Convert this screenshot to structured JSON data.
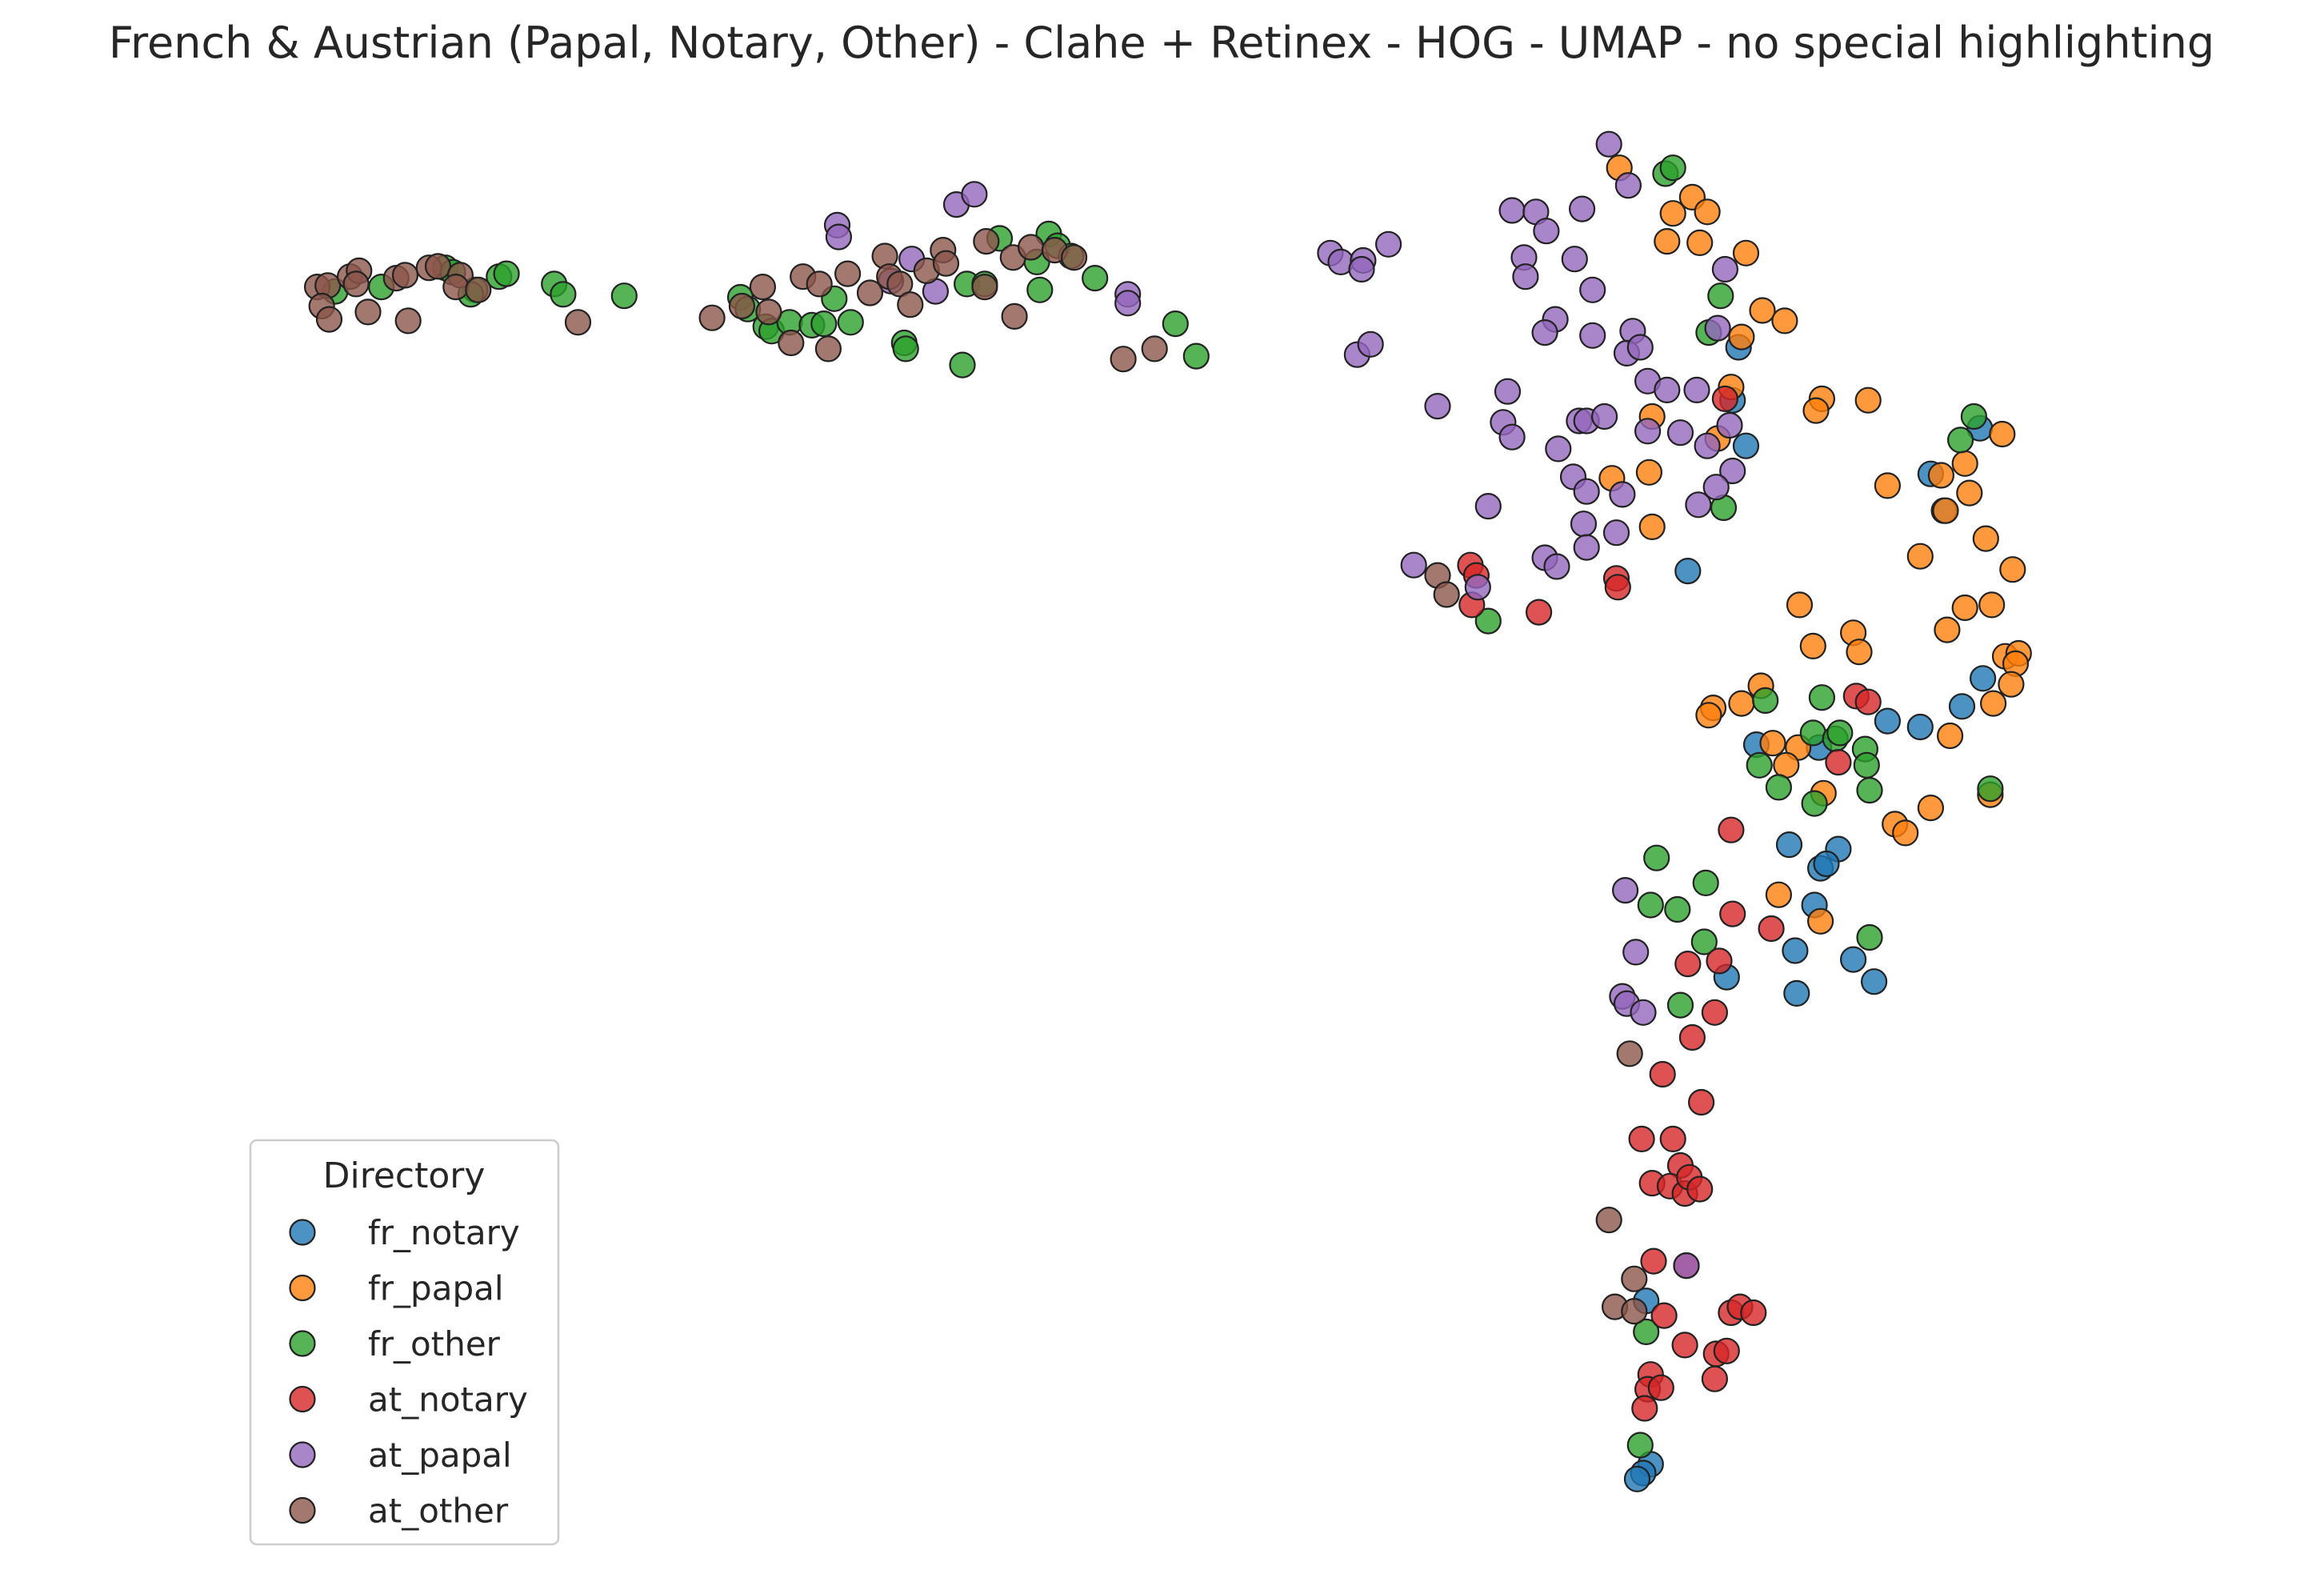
{
  "chart_data": {
    "type": "scatter",
    "title": "French & Austrian (Papal, Notary, Other) - Clahe + Retinex - HOG - UMAP - no special highlighting",
    "xlabel": "",
    "ylabel": "",
    "grid": false,
    "axes_visible": false,
    "xlim": [
      0,
      1560
    ],
    "ylim": [
      1075,
      0
    ],
    "legend": {
      "title": "Directory",
      "placement": "lower-left"
    },
    "series": [
      {
        "name": "fr_notary",
        "color": "#1f77b4",
        "points": [
          [
            1167,
            236
          ],
          [
            1163,
            272
          ],
          [
            1172,
            303
          ],
          [
            1133,
            388
          ],
          [
            1296,
            322
          ],
          [
            1305,
            347
          ],
          [
            1329,
            291
          ],
          [
            1331,
            461
          ],
          [
            1317,
            480
          ],
          [
            1289,
            494
          ],
          [
            1267,
            490
          ],
          [
            1221,
            508
          ],
          [
            1179,
            506
          ],
          [
            1201,
            574
          ],
          [
            1222,
            590
          ],
          [
            1234,
            577
          ],
          [
            1226,
            587
          ],
          [
            1218,
            615
          ],
          [
            1205,
            646
          ],
          [
            1244,
            652
          ],
          [
            1258,
            667
          ],
          [
            1206,
            675
          ],
          [
            1159,
            664
          ],
          [
            1105,
            884
          ],
          [
            1108,
            995
          ],
          [
            1103,
            1001
          ],
          [
            1099,
            1005
          ]
        ]
      },
      {
        "name": "fr_papal",
        "color": "#ff7f0e",
        "points": [
          [
            1087,
            114
          ],
          [
            1123,
            145
          ],
          [
            1136,
            134
          ],
          [
            1146,
            144
          ],
          [
            1119,
            164
          ],
          [
            1141,
            165
          ],
          [
            1172,
            172
          ],
          [
            1183,
            211
          ],
          [
            1198,
            218
          ],
          [
            1169,
            229
          ],
          [
            1162,
            263
          ],
          [
            1223,
            271
          ],
          [
            1219,
            279
          ],
          [
            1254,
            272
          ],
          [
            1153,
            298
          ],
          [
            1109,
            283
          ],
          [
            1107,
            321
          ],
          [
            1082,
            325
          ],
          [
            1109,
            358
          ],
          [
            1267,
            330
          ],
          [
            1303,
            323
          ],
          [
            1319,
            315
          ],
          [
            1322,
            335
          ],
          [
            1306,
            347
          ],
          [
            1333,
            366
          ],
          [
            1344,
            295
          ],
          [
            1289,
            378
          ],
          [
            1351,
            387
          ],
          [
            1208,
            411
          ],
          [
            1244,
            430
          ],
          [
            1217,
            439
          ],
          [
            1248,
            443
          ],
          [
            1307,
            428
          ],
          [
            1319,
            413
          ],
          [
            1337,
            411
          ],
          [
            1346,
            446
          ],
          [
            1355,
            444
          ],
          [
            1353,
            451
          ],
          [
            1350,
            465
          ],
          [
            1182,
            466
          ],
          [
            1150,
            481
          ],
          [
            1147,
            486
          ],
          [
            1169,
            478
          ],
          [
            1190,
            505
          ],
          [
            1207,
            508
          ],
          [
            1199,
            520
          ],
          [
            1309,
            500
          ],
          [
            1338,
            478
          ],
          [
            1224,
            539
          ],
          [
            1272,
            560
          ],
          [
            1279,
            566
          ],
          [
            1296,
            549
          ],
          [
            1336,
            540
          ],
          [
            1194,
            608
          ],
          [
            1222,
            626
          ]
        ]
      },
      {
        "name": "fr_other",
        "color": "#2ca02c",
        "points": [
          [
            225,
            198
          ],
          [
            256,
            195
          ],
          [
            299,
            182
          ],
          [
            304,
            185
          ],
          [
            319,
            197
          ],
          [
            316,
            200
          ],
          [
            335,
            188
          ],
          [
            340,
            186
          ],
          [
            372,
            193
          ],
          [
            378,
            200
          ],
          [
            419,
            201
          ],
          [
            497,
            202
          ],
          [
            502,
            210
          ],
          [
            514,
            222
          ],
          [
            518,
            225
          ],
          [
            530,
            219
          ],
          [
            545,
            221
          ],
          [
            553,
            220
          ],
          [
            571,
            219
          ],
          [
            560,
            203
          ],
          [
            607,
            233
          ],
          [
            608,
            237
          ],
          [
            646,
            248
          ],
          [
            649,
            193
          ],
          [
            671,
            162
          ],
          [
            661,
            193
          ],
          [
            698,
            197
          ],
          [
            696,
            178
          ],
          [
            704,
            159
          ],
          [
            710,
            167
          ],
          [
            719,
            174
          ],
          [
            735,
            189
          ],
          [
            789,
            220
          ],
          [
            803,
            242
          ],
          [
            1118,
            118
          ],
          [
            1123,
            114
          ],
          [
            1155,
            201
          ],
          [
            1147,
            226
          ],
          [
            1157,
            345
          ],
          [
            999,
            422
          ],
          [
            1325,
            283
          ],
          [
            1316,
            299
          ],
          [
            1336,
            536
          ],
          [
            1223,
            474
          ],
          [
            1185,
            476
          ],
          [
            1181,
            520
          ],
          [
            1194,
            535
          ],
          [
            1217,
            498
          ],
          [
            1232,
            502
          ],
          [
            1235,
            498
          ],
          [
            1252,
            509
          ],
          [
            1253,
            520
          ],
          [
            1255,
            537
          ],
          [
            1218,
            546
          ],
          [
            1112,
            583
          ],
          [
            1145,
            600
          ],
          [
            1108,
            615
          ],
          [
            1126,
            618
          ],
          [
            1144,
            640
          ],
          [
            1128,
            683
          ],
          [
            1255,
            637
          ],
          [
            1105,
            905
          ],
          [
            1101,
            982
          ]
        ]
      },
      {
        "name": "at_notary",
        "color": "#d62728",
        "points": [
          [
            1158,
            271
          ],
          [
            987,
            384
          ],
          [
            991,
            391
          ],
          [
            988,
            411
          ],
          [
            1033,
            416
          ],
          [
            1085,
            393
          ],
          [
            1086,
            399
          ],
          [
            1246,
            473
          ],
          [
            1254,
            477
          ],
          [
            1234,
            518
          ],
          [
            1162,
            564
          ],
          [
            1163,
            621
          ],
          [
            1189,
            631
          ],
          [
            1133,
            655
          ],
          [
            1154,
            653
          ],
          [
            1151,
            688
          ],
          [
            1136,
            705
          ],
          [
            1116,
            730
          ],
          [
            1142,
            749
          ],
          [
            1102,
            774
          ],
          [
            1123,
            774
          ],
          [
            1128,
            792
          ],
          [
            1109,
            804
          ],
          [
            1121,
            806
          ],
          [
            1131,
            811
          ],
          [
            1134,
            800
          ],
          [
            1141,
            808
          ],
          [
            1132,
            860
          ],
          [
            1110,
            857
          ],
          [
            1117,
            894
          ],
          [
            1131,
            914
          ],
          [
            1162,
            892
          ],
          [
            1168,
            888
          ],
          [
            1177,
            892
          ],
          [
            1152,
            920
          ],
          [
            1159,
            918
          ],
          [
            1151,
            937
          ],
          [
            1108,
            934
          ],
          [
            1106,
            944
          ],
          [
            1115,
            943
          ],
          [
            1104,
            957
          ]
        ]
      },
      {
        "name": "at_papal",
        "color": "#9467bd",
        "points": [
          [
            562,
            153
          ],
          [
            563,
            161
          ],
          [
            612,
            176
          ],
          [
            598,
            191
          ],
          [
            628,
            198
          ],
          [
            642,
            139
          ],
          [
            654,
            132
          ],
          [
            757,
            200
          ],
          [
            757,
            206
          ],
          [
            893,
            172
          ],
          [
            900,
            178
          ],
          [
            915,
            177
          ],
          [
            914,
            183
          ],
          [
            932,
            166
          ],
          [
            911,
            241
          ],
          [
            920,
            234
          ],
          [
            965,
            276
          ],
          [
            1080,
            98
          ],
          [
            1093,
            126
          ],
          [
            1062,
            142
          ],
          [
            1015,
            143
          ],
          [
            1031,
            144
          ],
          [
            1038,
            157
          ],
          [
            1023,
            175
          ],
          [
            1024,
            188
          ],
          [
            1057,
            176
          ],
          [
            1069,
            197
          ],
          [
            1044,
            217
          ],
          [
            1037,
            226
          ],
          [
            1069,
            228
          ],
          [
            1096,
            225
          ],
          [
            1092,
            240
          ],
          [
            1101,
            236
          ],
          [
            1106,
            259
          ],
          [
            1119,
            265
          ],
          [
            1139,
            265
          ],
          [
            1158,
            183
          ],
          [
            1153,
            223
          ],
          [
            1012,
            266
          ],
          [
            1009,
            287
          ],
          [
            1015,
            297
          ],
          [
            1046,
            305
          ],
          [
            1060,
            286
          ],
          [
            1065,
            286
          ],
          [
            1077,
            283
          ],
          [
            1106,
            293
          ],
          [
            1128,
            294
          ],
          [
            1161,
            289
          ],
          [
            1146,
            303
          ],
          [
            1163,
            320
          ],
          [
            1152,
            331
          ],
          [
            1140,
            343
          ],
          [
            1056,
            324
          ],
          [
            1065,
            334
          ],
          [
            1089,
            336
          ],
          [
            999,
            344
          ],
          [
            1063,
            356
          ],
          [
            1085,
            362
          ],
          [
            1037,
            379
          ],
          [
            1045,
            385
          ],
          [
            1065,
            372
          ],
          [
            949,
            384
          ],
          [
            992,
            399
          ],
          [
            1091,
            605
          ],
          [
            1098,
            647
          ],
          [
            1089,
            677
          ],
          [
            1092,
            682
          ],
          [
            1103,
            688
          ],
          [
            1132,
            860
          ]
        ]
      },
      {
        "name": "at_other",
        "color": "#8c564b",
        "points": [
          [
            213,
            195
          ],
          [
            220,
            194
          ],
          [
            235,
            188
          ],
          [
            241,
            184
          ],
          [
            239,
            193
          ],
          [
            216,
            208
          ],
          [
            221,
            217
          ],
          [
            247,
            212
          ],
          [
            266,
            189
          ],
          [
            272,
            187
          ],
          [
            288,
            182
          ],
          [
            294,
            181
          ],
          [
            309,
            187
          ],
          [
            306,
            195
          ],
          [
            321,
            197
          ],
          [
            274,
            218
          ],
          [
            388,
            219
          ],
          [
            478,
            216
          ],
          [
            498,
            208
          ],
          [
            512,
            195
          ],
          [
            516,
            212
          ],
          [
            531,
            233
          ],
          [
            539,
            188
          ],
          [
            550,
            193
          ],
          [
            556,
            237
          ],
          [
            569,
            186
          ],
          [
            584,
            199
          ],
          [
            594,
            174
          ],
          [
            597,
            188
          ],
          [
            604,
            193
          ],
          [
            611,
            207
          ],
          [
            622,
            184
          ],
          [
            633,
            170
          ],
          [
            635,
            179
          ],
          [
            662,
            164
          ],
          [
            661,
            195
          ],
          [
            680,
            175
          ],
          [
            681,
            215
          ],
          [
            692,
            168
          ],
          [
            708,
            170
          ],
          [
            721,
            175
          ],
          [
            754,
            244
          ],
          [
            775,
            237
          ],
          [
            965,
            391
          ],
          [
            971,
            404
          ],
          [
            1094,
            716
          ],
          [
            1080,
            829
          ],
          [
            1097,
            869
          ],
          [
            1084,
            888
          ],
          [
            1097,
            891
          ]
        ]
      }
    ]
  }
}
